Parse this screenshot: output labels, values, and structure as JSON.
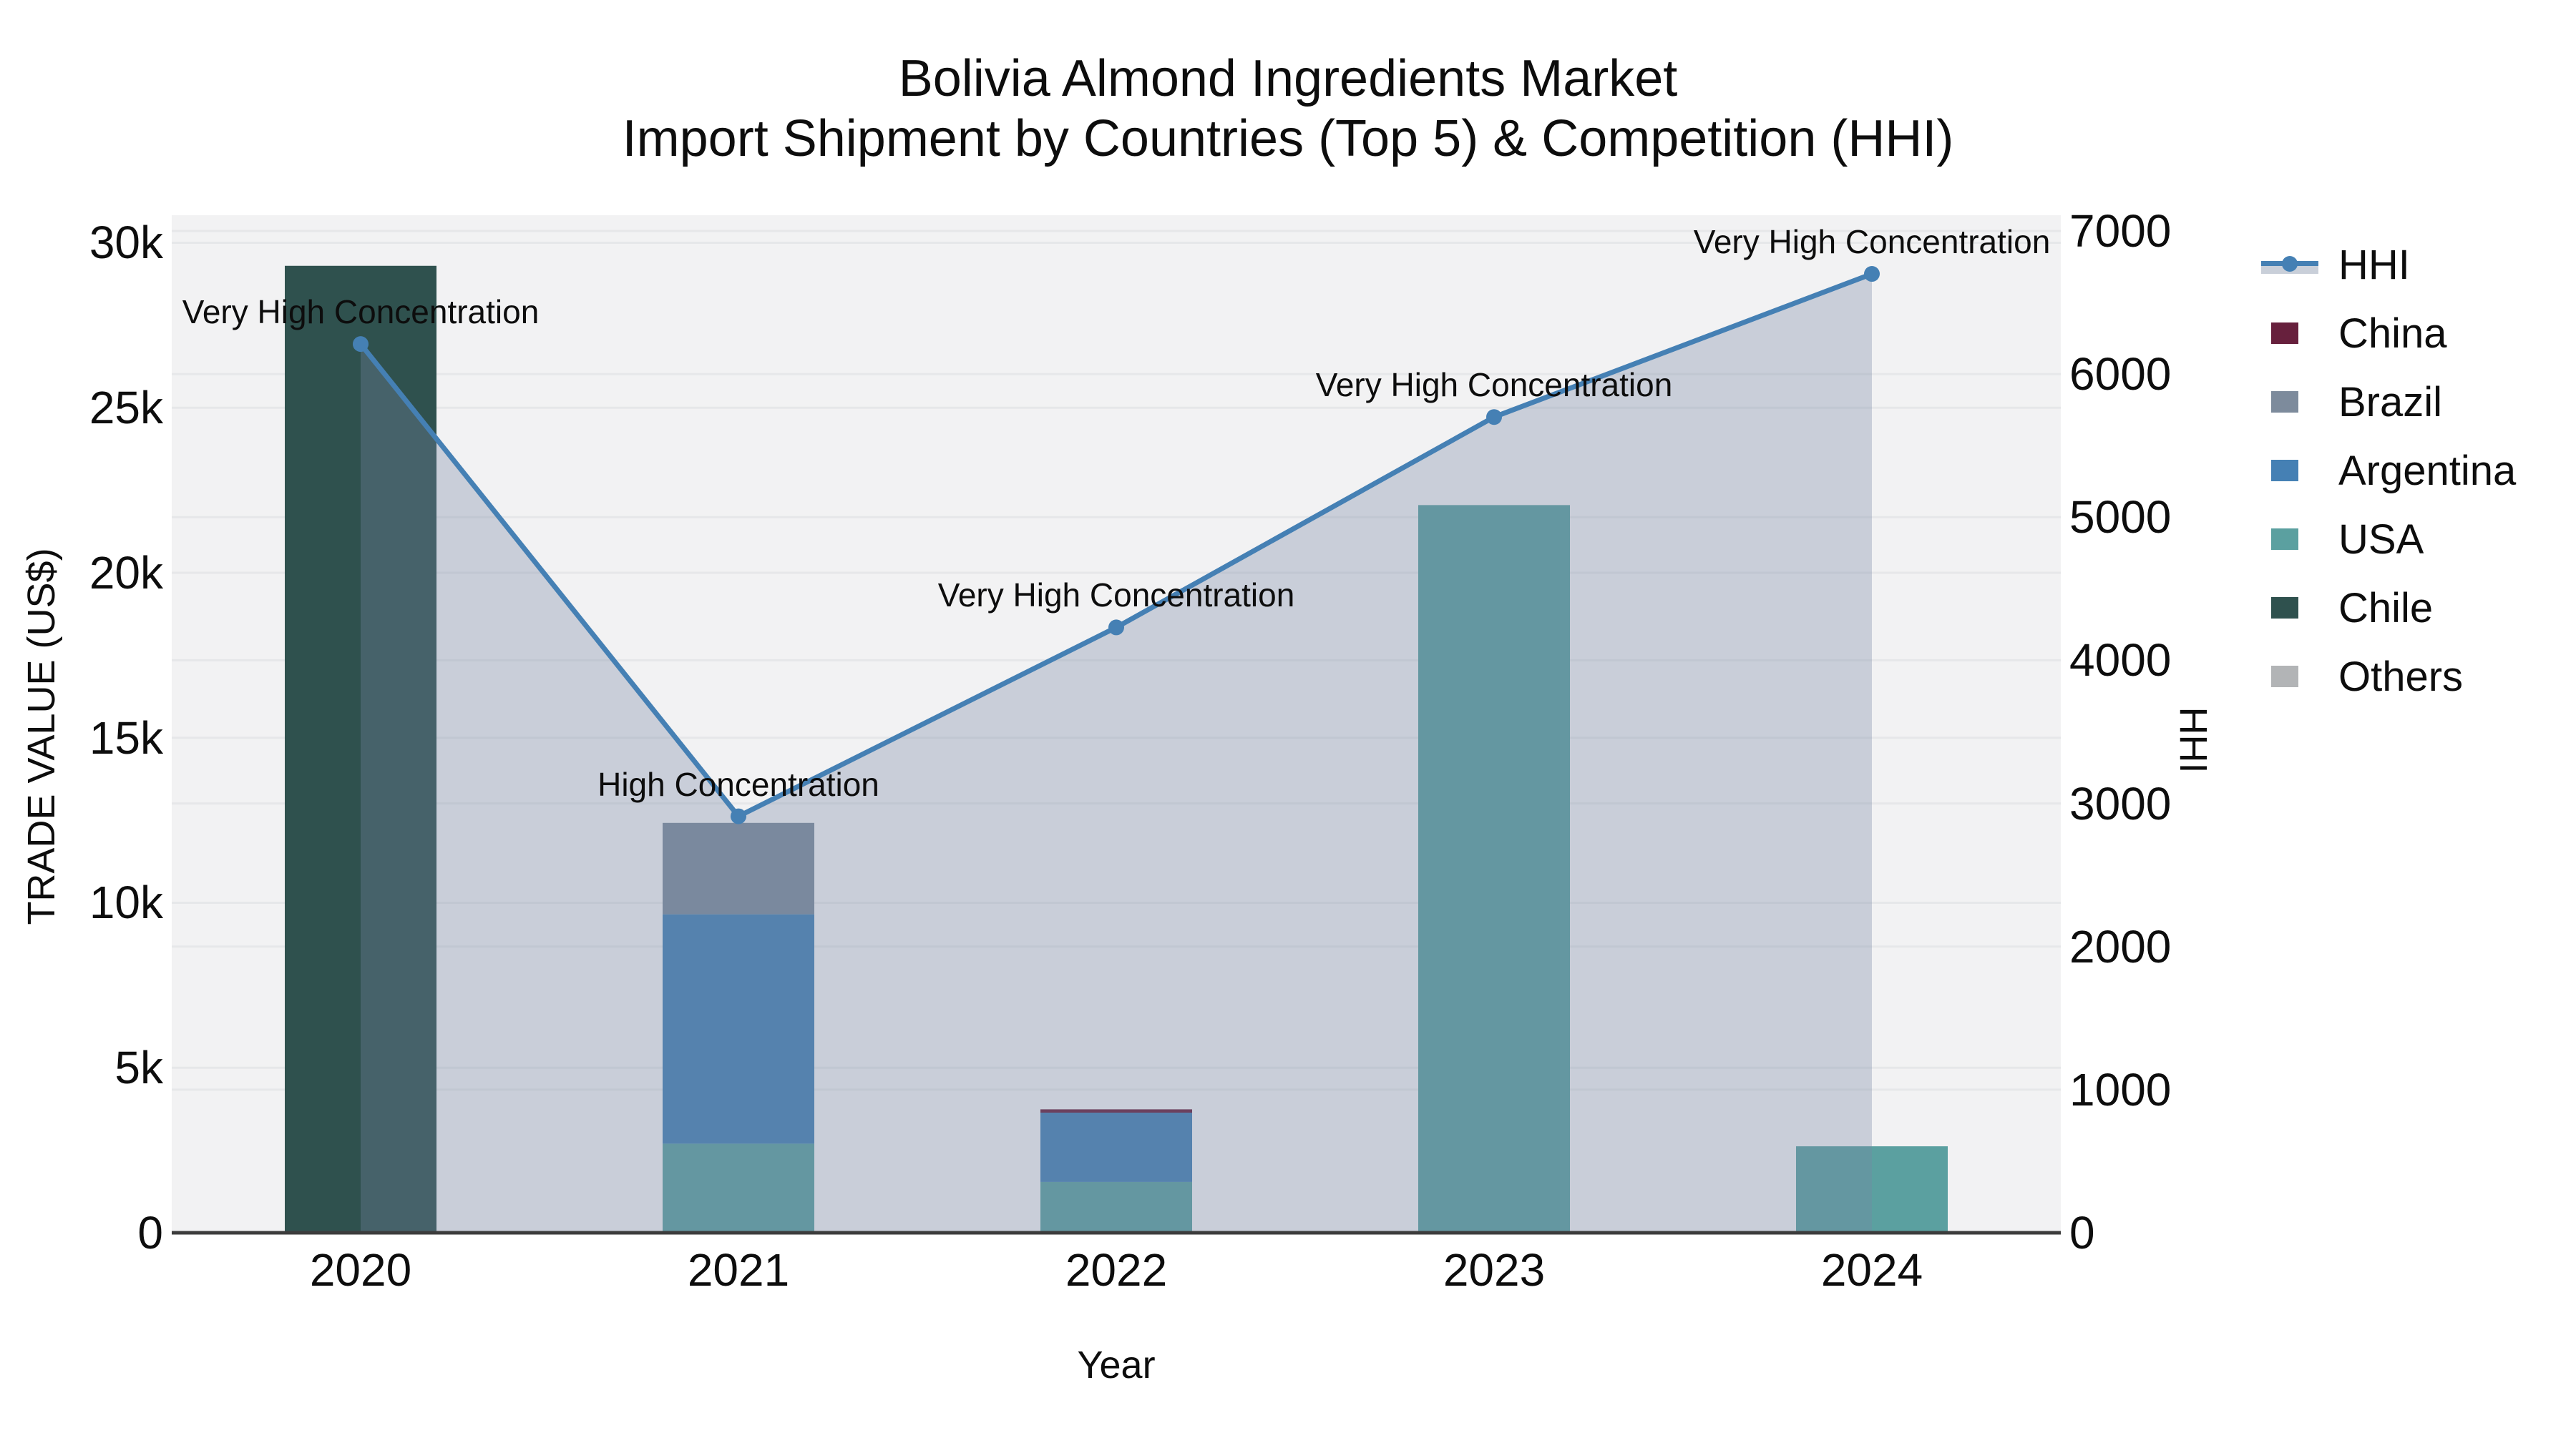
{
  "title": {
    "line1": "Bolivia Almond Ingredients Market",
    "line2": "Import Shipment by Countries (Top 5) & Competition (HHI)"
  },
  "colors": {
    "hhi_line": "#4580b4",
    "hhi_area": "rgba(119,135,165,0.33)",
    "china": "#67203d",
    "brazil": "#7d8b9c",
    "argentina": "#4580b4",
    "usa": "#5ba0a0",
    "chile": "#2f514e",
    "others": "#b2b4b6",
    "plot_background": "#f2f2f3",
    "gridline": "#e6e7e9",
    "axis_line": "#3c3c3c"
  },
  "legend": {
    "items": [
      {
        "label": "HHI",
        "color": "#4580b4",
        "type": "line"
      },
      {
        "label": "China",
        "color": "#67203d",
        "type": "box"
      },
      {
        "label": "Brazil",
        "color": "#7d8b9c",
        "type": "box"
      },
      {
        "label": "Argentina",
        "color": "#4580b4",
        "type": "box"
      },
      {
        "label": "USA",
        "color": "#5ba0a0",
        "type": "box"
      },
      {
        "label": "Chile",
        "color": "#2f514e",
        "type": "box"
      },
      {
        "label": "Others",
        "color": "#b2b4b6",
        "type": "box"
      }
    ]
  },
  "chart_data": {
    "type": "composite_stacked_bar_line",
    "categories": [
      "2020",
      "2021",
      "2022",
      "2023",
      "2024"
    ],
    "bar_series": [
      {
        "name": "Chile",
        "color": "#2f514e",
        "values": [
          29300,
          0,
          0,
          0,
          0
        ]
      },
      {
        "name": "USA",
        "color": "#5ba0a0",
        "values": [
          0,
          2700,
          1540,
          22050,
          2620
        ]
      },
      {
        "name": "Argentina",
        "color": "#4580b4",
        "values": [
          0,
          6950,
          2100,
          0,
          0
        ]
      },
      {
        "name": "Brazil",
        "color": "#7d8b9c",
        "values": [
          0,
          2770,
          0,
          0,
          0
        ]
      },
      {
        "name": "China",
        "color": "#67203d",
        "values": [
          0,
          0,
          100,
          0,
          0
        ]
      },
      {
        "name": "Others",
        "color": "#b2b4b6",
        "values": [
          0,
          0,
          0,
          0,
          0
        ]
      }
    ],
    "line_series": {
      "name": "HHI",
      "color": "#4580b4",
      "fill_color": "rgba(119,135,165,0.33)",
      "values": [
        6210,
        2910,
        4230,
        5700,
        6700
      ]
    },
    "annotations": [
      "Very High Concentration",
      "High Concentration",
      "Very High Concentration",
      "Very High Concentration",
      "Very High Concentration"
    ],
    "left_axis": {
      "title": "TRADE VALUE (US$)",
      "range": [
        0,
        30833
      ],
      "ticks": [
        {
          "value": 0,
          "label": "0"
        },
        {
          "value": 5000,
          "label": "5k"
        },
        {
          "value": 10000,
          "label": "10k"
        },
        {
          "value": 15000,
          "label": "15k"
        },
        {
          "value": 20000,
          "label": "20k"
        },
        {
          "value": 25000,
          "label": "25k"
        },
        {
          "value": 30000,
          "label": "30k"
        }
      ],
      "grid": [
        5000,
        10000,
        15000,
        20000,
        25000,
        30000
      ]
    },
    "right_axis": {
      "title": "HHI",
      "range": [
        0,
        7110
      ],
      "ticks": [
        {
          "value": 0,
          "label": "0"
        },
        {
          "value": 1000,
          "label": "1000"
        },
        {
          "value": 2000,
          "label": "2000"
        },
        {
          "value": 3000,
          "label": "3000"
        },
        {
          "value": 4000,
          "label": "4000"
        },
        {
          "value": 5000,
          "label": "5000"
        },
        {
          "value": 6000,
          "label": "6000"
        },
        {
          "value": 7000,
          "label": "7000"
        }
      ],
      "grid": [
        1000,
        2000,
        3000,
        4000,
        5000,
        6000,
        7000
      ]
    },
    "x_axis": {
      "title": "Year"
    }
  }
}
